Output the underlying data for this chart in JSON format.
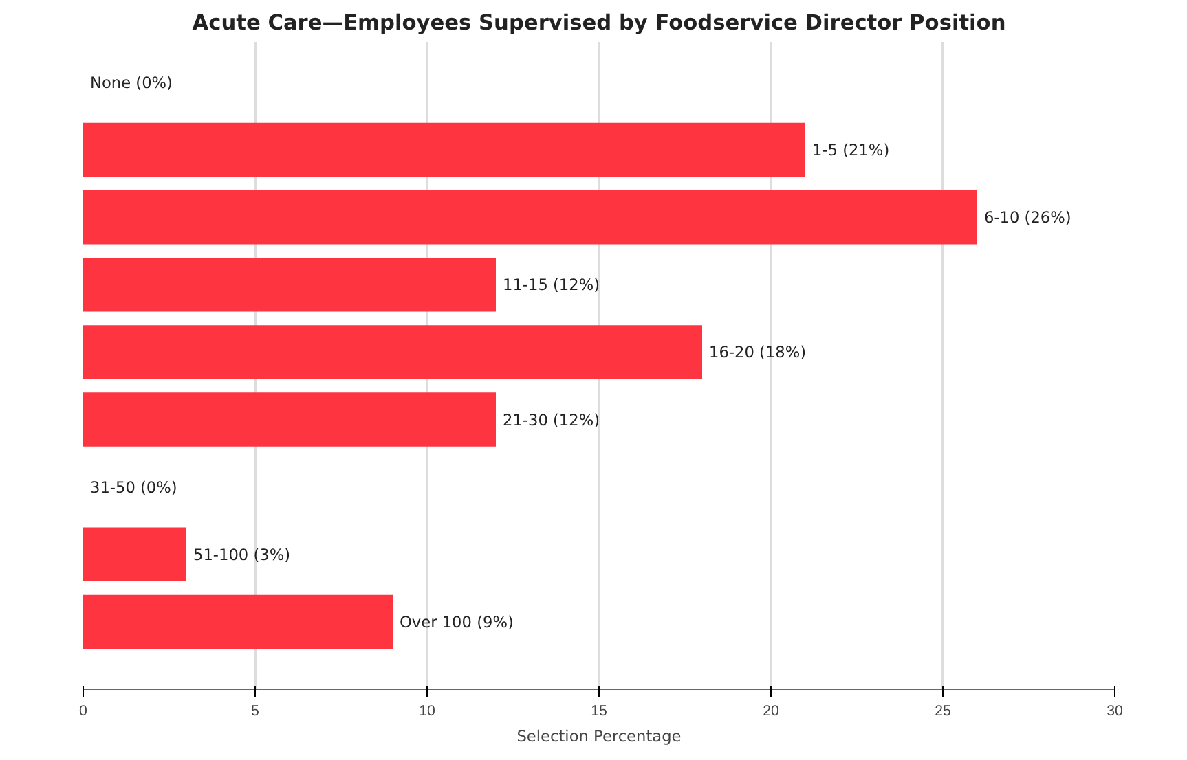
{
  "chart_data": {
    "type": "bar",
    "orientation": "horizontal",
    "title": "Acute Care—Employees Supervised by Foodservice Director Position",
    "xlabel": "Selection Percentage",
    "categories": [
      "None (0%)",
      "1-5 (21%)",
      "6-10 (26%)",
      "11-15 (12%)",
      "16-20 (18%)",
      "21-30 (12%)",
      "31-50 (0%)",
      "51-100 (3%)",
      "Over 100 (9%)"
    ],
    "values": [
      0,
      21,
      26,
      12,
      18,
      12,
      0,
      3,
      9
    ],
    "color": "#fe3540",
    "xlim": [
      0,
      30
    ],
    "xticks": [
      0,
      5,
      10,
      15,
      20,
      25,
      30
    ],
    "grid": "x",
    "tick_labels": "x"
  }
}
